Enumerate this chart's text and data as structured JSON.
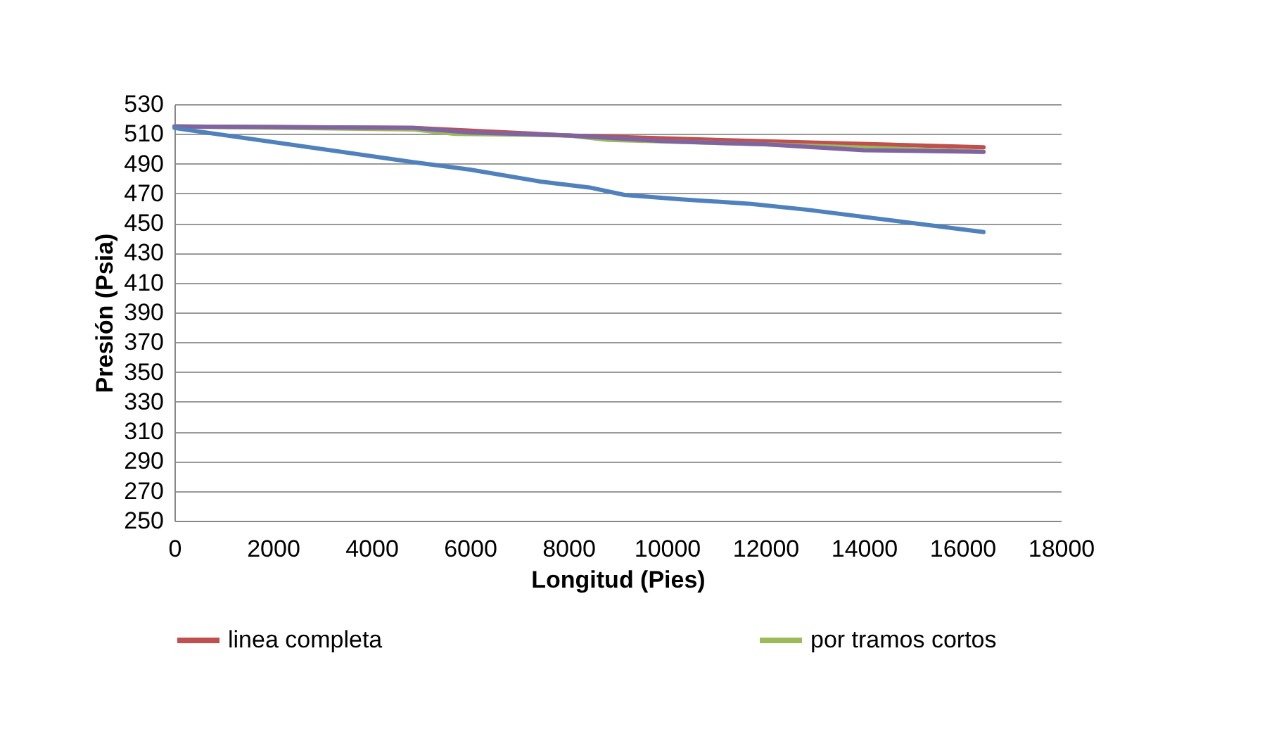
{
  "chart_data": {
    "type": "line",
    "xlabel": "Longitud (Pies)",
    "ylabel": "Presión (Psia)",
    "xlim": [
      0,
      18000
    ],
    "xticks": [
      0,
      2000,
      4000,
      6000,
      8000,
      10000,
      12000,
      14000,
      16000,
      18000
    ],
    "ylim": [
      250,
      530
    ],
    "yticks": [
      250,
      270,
      290,
      310,
      330,
      350,
      370,
      390,
      410,
      430,
      450,
      470,
      490,
      510,
      530
    ],
    "grid": "y",
    "legend": "bottom",
    "line_style": "solid",
    "series": [
      {
        "name": "linea completa",
        "color": "#c0504d",
        "x": [
          0,
          4857,
          8000,
          12000,
          16430
        ],
        "values": [
          515,
          514,
          509,
          505,
          501
        ]
      },
      {
        "name": "por tramos cortos",
        "color": "#9bbb59",
        "x": [
          0,
          4857,
          5700,
          8000,
          8800,
          12000,
          16430
        ],
        "values": [
          515,
          513,
          510,
          509,
          506,
          503,
          498
        ]
      },
      {
        "color": "#8064a2",
        "x": [
          0,
          4857,
          6000,
          8000,
          10000,
          12000,
          14000,
          16430
        ],
        "values": [
          515,
          514,
          511,
          509,
          505,
          503,
          499,
          498
        ]
      },
      {
        "color": "#4f81bd",
        "x": [
          0,
          4857,
          6000,
          7430,
          8430,
          9140,
          10290,
          11710,
          12860,
          16430
        ],
        "values": [
          514,
          491,
          486,
          478,
          474,
          469,
          466,
          463,
          459,
          444
        ]
      }
    ]
  }
}
